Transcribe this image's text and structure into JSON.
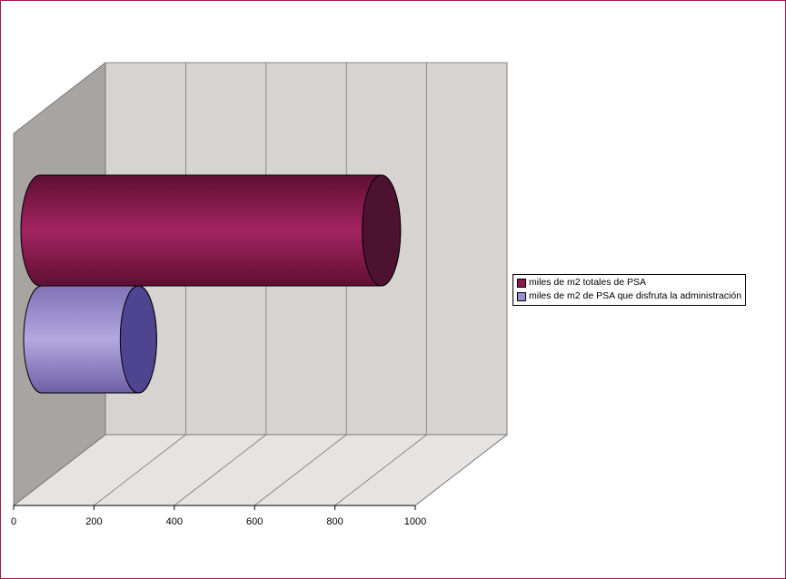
{
  "chart_data": {
    "type": "bar",
    "orientation": "horizontal",
    "style": "3d-cylinder",
    "title": "",
    "xlabel": "",
    "ylabel": "",
    "xlim": [
      0,
      1000
    ],
    "x_ticks": [
      "0",
      "200",
      "400",
      "600",
      "800",
      "1000"
    ],
    "grid": true,
    "legend_position": "right",
    "series": [
      {
        "name": "miles de m2 totales de PSA",
        "value": 870,
        "color": "#8b1a4e"
      },
      {
        "name": "miles de m2 de PSA que disfruta la administración",
        "value": 265,
        "color": "#9b8fd0"
      }
    ]
  },
  "colors": {
    "frame_border": "#9b1b4b",
    "back_wall": "#d6d3d0",
    "side_wall": "#a8a4a2",
    "floor": "#e6e4e2"
  }
}
